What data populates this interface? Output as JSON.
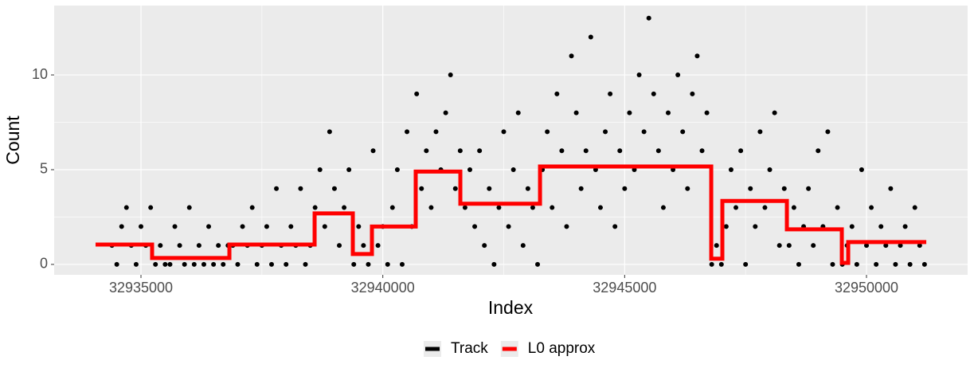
{
  "chart_data": {
    "type": "scatter",
    "xlabel": "Index",
    "ylabel": "Count",
    "xlim": [
      32933205,
      32952091
    ],
    "ylim": [
      -0.55,
      13.66
    ],
    "xticks": [
      32935000,
      32940000,
      32945000,
      32950000
    ],
    "yticks": [
      0,
      5,
      10
    ],
    "grid": true,
    "legend": "bottom",
    "series": [
      {
        "name": "Track",
        "color": "#000000",
        "type": "scatter",
        "x": [
          32934400,
          32934500,
          32934600,
          32934700,
          32934800,
          32934900,
          32935000,
          32935100,
          32935200,
          32935300,
          32935400,
          32935500,
          32935600,
          32935700,
          32935800,
          32935900,
          32936000,
          32936100,
          32936200,
          32936300,
          32936400,
          32936500,
          32936600,
          32936700,
          32936800,
          32936900,
          32937000,
          32937100,
          32937200,
          32937300,
          32937400,
          32937500,
          32937600,
          32937700,
          32937800,
          32937900,
          32938000,
          32938100,
          32938200,
          32938300,
          32938400,
          32938500,
          32938600,
          32938700,
          32938800,
          32938900,
          32939000,
          32939100,
          32939200,
          32939300,
          32939400,
          32939500,
          32939600,
          32939700,
          32939800,
          32939900,
          32940000,
          32940100,
          32940200,
          32940300,
          32940400,
          32940500,
          32940600,
          32940700,
          32940800,
          32940900,
          32941000,
          32941100,
          32941200,
          32941300,
          32941400,
          32941500,
          32941600,
          32941700,
          32941800,
          32941900,
          32942000,
          32942100,
          32942200,
          32942300,
          32942400,
          32942500,
          32942600,
          32942700,
          32942800,
          32942900,
          32943000,
          32943100,
          32943200,
          32943300,
          32943400,
          32943500,
          32943600,
          32943700,
          32943800,
          32943900,
          32944000,
          32944100,
          32944200,
          32944300,
          32944400,
          32944500,
          32944600,
          32944700,
          32944800,
          32944900,
          32945000,
          32945100,
          32945200,
          32945300,
          32945400,
          32945500,
          32945600,
          32945700,
          32945800,
          32945900,
          32946000,
          32946100,
          32946200,
          32946300,
          32946400,
          32946500,
          32946600,
          32946700,
          32946800,
          32946900,
          32947000,
          32947100,
          32947200,
          32947300,
          32947400,
          32947500,
          32947600,
          32947700,
          32947800,
          32947900,
          32948000,
          32948100,
          32948200,
          32948300,
          32948400,
          32948500,
          32948600,
          32948700,
          32948800,
          32948900,
          32949000,
          32949100,
          32949200,
          32949300,
          32949400,
          32949500,
          32949600,
          32949700,
          32949800,
          32949900,
          32950000,
          32950100,
          32950200,
          32950300,
          32950400,
          32950500,
          32950600,
          32950700,
          32950800,
          32950900,
          32951000,
          32951100,
          32951200
        ],
        "values": [
          1,
          0,
          2,
          3,
          1,
          0,
          2,
          1,
          3,
          0,
          1,
          0,
          0,
          2,
          1,
          0,
          3,
          0,
          1,
          0,
          2,
          0,
          1,
          0,
          1,
          1,
          0,
          2,
          1,
          3,
          0,
          1,
          2,
          0,
          4,
          1,
          0,
          2,
          1,
          4,
          0,
          1,
          3,
          5,
          2,
          7,
          4,
          1,
          3,
          5,
          0,
          2,
          1,
          0,
          6,
          1,
          2,
          0,
          3,
          5,
          0,
          7,
          2,
          9,
          4,
          6,
          3,
          7,
          5,
          8,
          10,
          4,
          6,
          3,
          5,
          2,
          6,
          1,
          4,
          0,
          3,
          7,
          2,
          5,
          8,
          1,
          4,
          3,
          0,
          5,
          7,
          3,
          9,
          6,
          2,
          11,
          8,
          4,
          6,
          12,
          5,
          3,
          7,
          9,
          2,
          6,
          4,
          8,
          5,
          10,
          7,
          13,
          9,
          6,
          3,
          8,
          5,
          10,
          7,
          4,
          9,
          11,
          6,
          8,
          0,
          1,
          0,
          2,
          5,
          3,
          6,
          0,
          4,
          2,
          7,
          3,
          5,
          8,
          1,
          4,
          1,
          3,
          0,
          2,
          4,
          1,
          6,
          2,
          7,
          0,
          3,
          0,
          1,
          2,
          0,
          5,
          1,
          3,
          0,
          2,
          1,
          4,
          0,
          1,
          2,
          0,
          3,
          1,
          0
        ]
      },
      {
        "name": "L0 approx",
        "color": "#ff0000",
        "type": "line",
        "x": [
          32934061,
          32935230,
          32935230,
          32936828,
          32936828,
          32938590,
          32938590,
          32939380,
          32939380,
          32939775,
          32939775,
          32940680,
          32940680,
          32941603,
          32941603,
          32943250,
          32943250,
          32946790,
          32946790,
          32947020,
          32947020,
          32948354,
          32948354,
          32949490,
          32949490,
          32949622,
          32949622,
          32951236
        ],
        "values": [
          1.05,
          1.05,
          0.34,
          0.34,
          1.05,
          1.05,
          2.69,
          2.69,
          0.55,
          0.55,
          2.0,
          2.0,
          4.9,
          4.9,
          3.2,
          3.2,
          5.17,
          5.17,
          0.3,
          0.3,
          3.35,
          3.35,
          1.85,
          1.85,
          0.08,
          0.08,
          1.18,
          1.18
        ]
      }
    ]
  }
}
